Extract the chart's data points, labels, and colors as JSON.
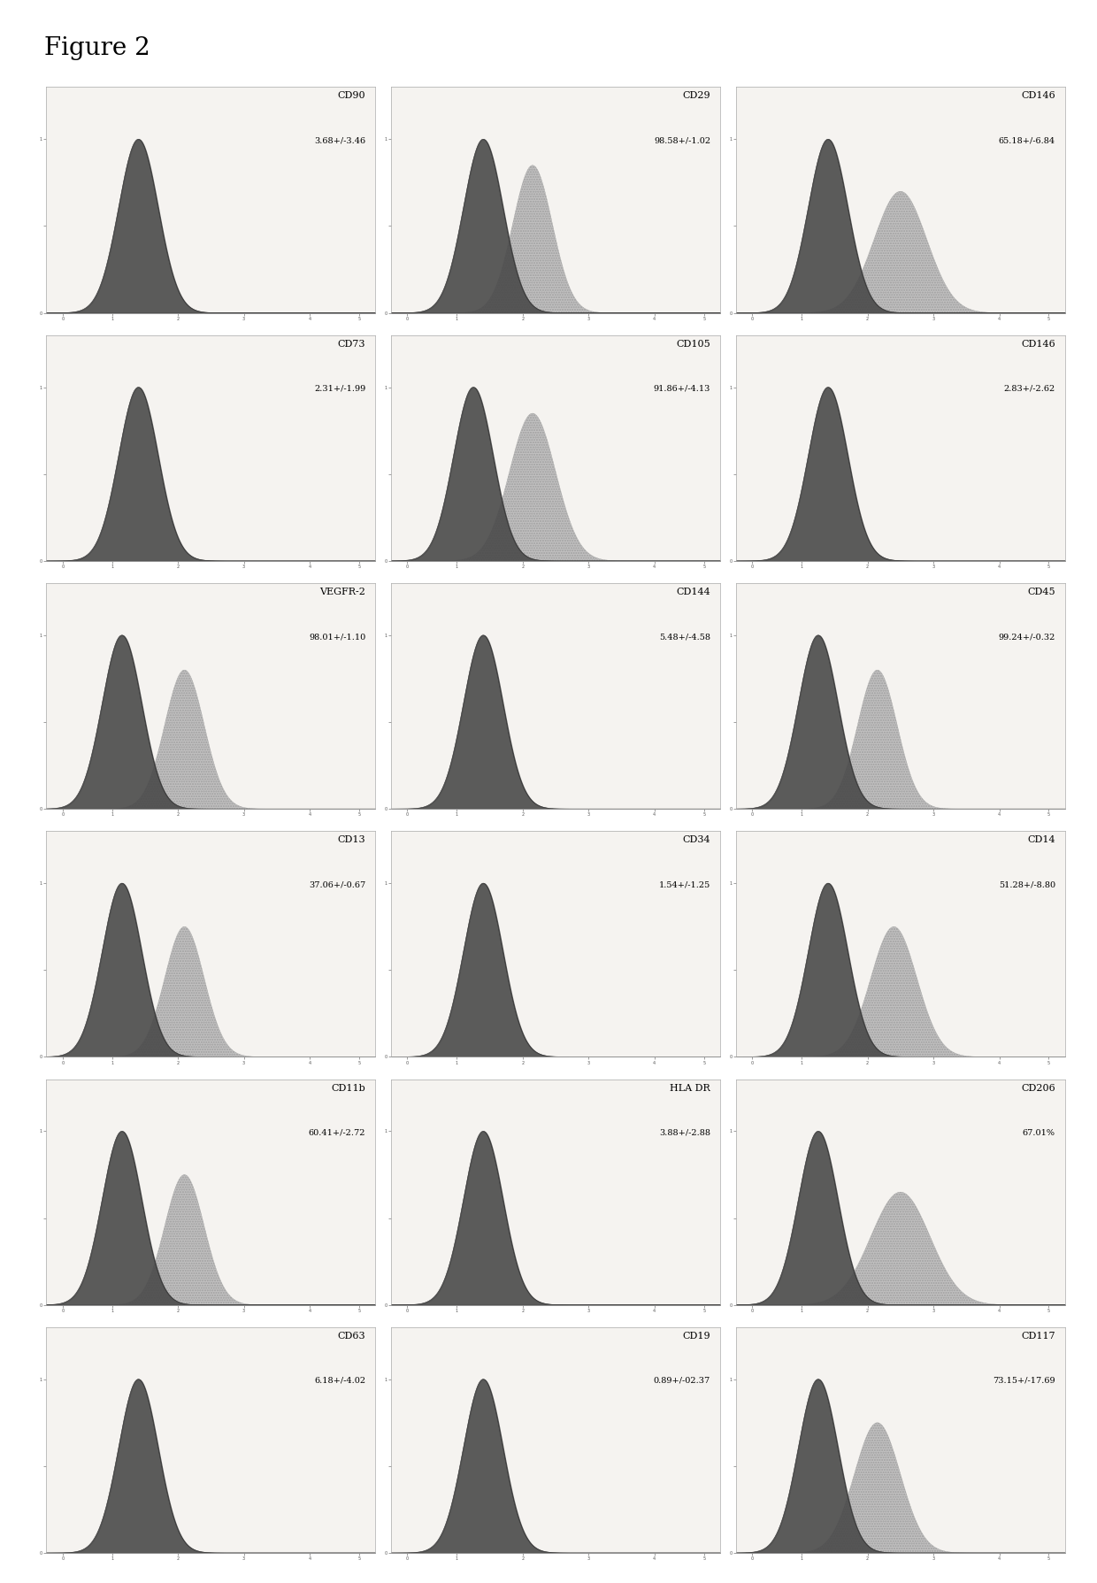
{
  "figure_title": "Figure 2",
  "panels": [
    {
      "title": "CD90",
      "value": "3.68+/-3.46",
      "p1": 0.28,
      "p2": 0.45,
      "s1": 0.06,
      "s2": 0.06,
      "a2": 0.0,
      "row": 0,
      "col": 0
    },
    {
      "title": "CD29",
      "value": "98.58+/-1.02",
      "p1": 0.28,
      "p2": 0.43,
      "s1": 0.06,
      "s2": 0.06,
      "a2": 0.85,
      "row": 0,
      "col": 1
    },
    {
      "title": "CD146",
      "value": "65.18+/-6.84",
      "p1": 0.28,
      "p2": 0.5,
      "s1": 0.06,
      "s2": 0.08,
      "a2": 0.7,
      "row": 0,
      "col": 2
    },
    {
      "title": "CD73",
      "value": "2.31+/-1.99",
      "p1": 0.28,
      "p2": 0.45,
      "s1": 0.06,
      "s2": 0.06,
      "a2": 0.0,
      "row": 1,
      "col": 0
    },
    {
      "title": "CD105",
      "value": "91.86+/-4.13",
      "p1": 0.25,
      "p2": 0.43,
      "s1": 0.06,
      "s2": 0.07,
      "a2": 0.85,
      "row": 1,
      "col": 1
    },
    {
      "title": "CD146",
      "value": "2.83+/-2.62",
      "p1": 0.28,
      "p2": 0.45,
      "s1": 0.06,
      "s2": 0.06,
      "a2": 0.0,
      "row": 1,
      "col": 2
    },
    {
      "title": "VEGFR-2",
      "value": "98.01+/-1.10",
      "p1": 0.23,
      "p2": 0.42,
      "s1": 0.06,
      "s2": 0.06,
      "a2": 0.8,
      "row": 2,
      "col": 0
    },
    {
      "title": "CD144",
      "value": "5.48+/-4.58",
      "p1": 0.28,
      "p2": 0.45,
      "s1": 0.06,
      "s2": 0.06,
      "a2": 0.0,
      "row": 2,
      "col": 1
    },
    {
      "title": "CD45",
      "value": "99.24+/-0.32",
      "p1": 0.25,
      "p2": 0.43,
      "s1": 0.06,
      "s2": 0.06,
      "a2": 0.8,
      "row": 2,
      "col": 2
    },
    {
      "title": "CD13",
      "value": "37.06+/-0.67",
      "p1": 0.23,
      "p2": 0.42,
      "s1": 0.06,
      "s2": 0.06,
      "a2": 0.75,
      "row": 3,
      "col": 0
    },
    {
      "title": "CD34",
      "value": "1.54+/-1.25",
      "p1": 0.28,
      "p2": 0.45,
      "s1": 0.06,
      "s2": 0.06,
      "a2": 0.0,
      "row": 3,
      "col": 1
    },
    {
      "title": "CD14",
      "value": "51.28+/-8.80",
      "p1": 0.28,
      "p2": 0.48,
      "s1": 0.06,
      "s2": 0.07,
      "a2": 0.75,
      "row": 3,
      "col": 2
    },
    {
      "title": "CD11b",
      "value": "60.41+/-2.72",
      "p1": 0.23,
      "p2": 0.42,
      "s1": 0.06,
      "s2": 0.06,
      "a2": 0.75,
      "row": 4,
      "col": 0
    },
    {
      "title": "HLA DR",
      "value": "3.88+/-2.88",
      "p1": 0.28,
      "p2": 0.45,
      "s1": 0.06,
      "s2": 0.06,
      "a2": 0.0,
      "row": 4,
      "col": 1
    },
    {
      "title": "CD206",
      "value": "67.01%",
      "p1": 0.25,
      "p2": 0.5,
      "s1": 0.06,
      "s2": 0.09,
      "a2": 0.65,
      "row": 4,
      "col": 2
    },
    {
      "title": "CD63",
      "value": "6.18+/-4.02",
      "p1": 0.28,
      "p2": 0.45,
      "s1": 0.06,
      "s2": 0.06,
      "a2": 0.0,
      "row": 5,
      "col": 0
    },
    {
      "title": "CD19",
      "value": "0.89+/-02.37",
      "p1": 0.28,
      "p2": 0.45,
      "s1": 0.06,
      "s2": 0.06,
      "a2": 0.0,
      "row": 5,
      "col": 1
    },
    {
      "title": "CD117",
      "value": "73.15+/-17.69",
      "p1": 0.25,
      "p2": 0.43,
      "s1": 0.06,
      "s2": 0.07,
      "a2": 0.75,
      "row": 5,
      "col": 2
    }
  ],
  "nrows": 6,
  "ncols": 3,
  "fig_bg": "#ffffff",
  "panel_bg": "#f5f3f0",
  "dark_color": "#4a4a4a",
  "light_color": "#b8b8b8",
  "border_color": "#aaaaaa",
  "title_fontsize": 20,
  "label_fontsize": 8,
  "value_fontsize": 7
}
